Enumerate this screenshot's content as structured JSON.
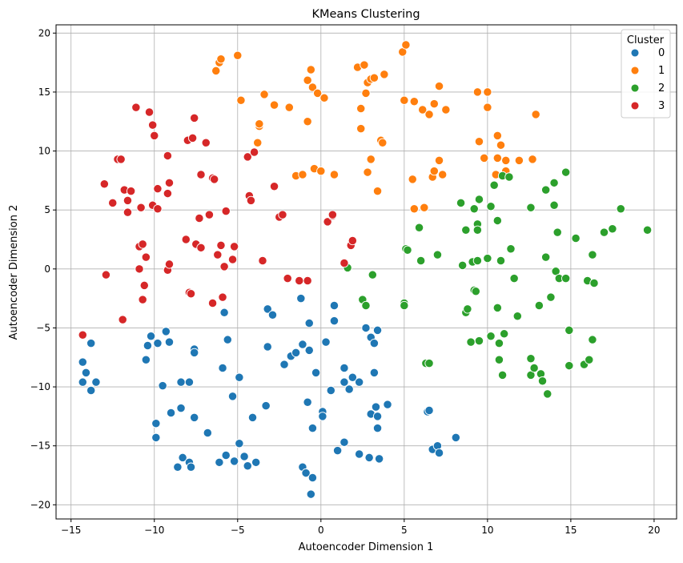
{
  "chart_data": {
    "type": "scatter",
    "title": "KMeans Clustering",
    "xlabel": "Autoencoder Dimension 1",
    "ylabel": "Autoencoder Dimension 2",
    "xlim": [
      -15.9,
      21.35
    ],
    "ylim": [
      -21.2,
      20.7
    ],
    "xticks": [
      -15,
      -10,
      -5,
      0,
      5,
      10,
      15,
      20
    ],
    "yticks": [
      -20,
      -15,
      -10,
      -5,
      0,
      5,
      10,
      15,
      20
    ],
    "xtick_labels": [
      "−15",
      "−10",
      "−5",
      "0",
      "5",
      "10",
      "15",
      "20"
    ],
    "ytick_labels": [
      "−20",
      "−15",
      "−10",
      "−5",
      "0",
      "5",
      "10",
      "15",
      "20"
    ],
    "grid": true,
    "legend": {
      "title": "Cluster",
      "placement": "top-right"
    },
    "series": [
      {
        "name": "0",
        "color": "#1f77b4",
        "points": [
          [
            -14.3,
            -7.9
          ],
          [
            -14.1,
            -8.8
          ],
          [
            -14.3,
            -9.6
          ],
          [
            -13.8,
            -6.3
          ],
          [
            -13.8,
            -10.3
          ],
          [
            -13.5,
            -9.6
          ],
          [
            -10.2,
            -5.7
          ],
          [
            -10.4,
            -6.5
          ],
          [
            -10.5,
            -7.7
          ],
          [
            -9.8,
            -6.3
          ],
          [
            -9.3,
            -5.3
          ],
          [
            -9.1,
            -6.2
          ],
          [
            -9.5,
            -9.9
          ],
          [
            -9.9,
            -13.1
          ],
          [
            -9.9,
            -14.3
          ],
          [
            -9.0,
            -12.2
          ],
          [
            -8.4,
            -11.8
          ],
          [
            -8.4,
            -9.6
          ],
          [
            -7.9,
            -9.6
          ],
          [
            -7.6,
            -6.8
          ],
          [
            -7.6,
            -7.1
          ],
          [
            -7.6,
            -12.6
          ],
          [
            -8.6,
            -16.8
          ],
          [
            -8.3,
            -16.0
          ],
          [
            -7.9,
            -16.4
          ],
          [
            -7.8,
            -16.8
          ],
          [
            -6.8,
            -13.9
          ],
          [
            -6.1,
            -16.4
          ],
          [
            -5.7,
            -15.8
          ],
          [
            -5.2,
            -16.3
          ],
          [
            -5.9,
            -8.4
          ],
          [
            -5.8,
            -3.7
          ],
          [
            -5.6,
            -6.0
          ],
          [
            -5.3,
            -10.8
          ],
          [
            -4.9,
            -9.2
          ],
          [
            -4.9,
            -14.8
          ],
          [
            -4.6,
            -15.9
          ],
          [
            -4.4,
            -16.7
          ],
          [
            -4.1,
            -12.6
          ],
          [
            -3.9,
            -16.4
          ],
          [
            -3.3,
            -11.6
          ],
          [
            -3.2,
            -6.6
          ],
          [
            -3.2,
            -3.4
          ],
          [
            -2.9,
            -3.9
          ],
          [
            -2.2,
            -8.1
          ],
          [
            -1.8,
            -7.4
          ],
          [
            -1.5,
            -7.1
          ],
          [
            -1.2,
            -2.5
          ],
          [
            -1.1,
            -6.4
          ],
          [
            -1.1,
            -16.8
          ],
          [
            -0.9,
            -17.3
          ],
          [
            -0.5,
            -17.7
          ],
          [
            -0.6,
            -19.1
          ],
          [
            -0.8,
            -11.3
          ],
          [
            -0.7,
            -6.9
          ],
          [
            -0.7,
            -4.6
          ],
          [
            -0.5,
            -13.5
          ],
          [
            -0.3,
            -8.8
          ],
          [
            0.1,
            -12.1
          ],
          [
            0.1,
            -12.5
          ],
          [
            0.3,
            -6.2
          ],
          [
            0.6,
            -10.3
          ],
          [
            0.8,
            -3.1
          ],
          [
            0.8,
            -4.4
          ],
          [
            1.0,
            -15.4
          ],
          [
            1.4,
            -8.4
          ],
          [
            1.4,
            -9.6
          ],
          [
            1.4,
            -14.7
          ],
          [
            1.7,
            -10.2
          ],
          [
            1.9,
            -9.2
          ],
          [
            2.3,
            -15.7
          ],
          [
            2.3,
            -9.6
          ],
          [
            2.7,
            -5.0
          ],
          [
            3.0,
            -5.8
          ],
          [
            3.0,
            -12.3
          ],
          [
            2.9,
            -16.0
          ],
          [
            3.2,
            -6.3
          ],
          [
            3.2,
            -8.8
          ],
          [
            3.3,
            -11.7
          ],
          [
            3.4,
            -13.5
          ],
          [
            3.4,
            -5.2
          ],
          [
            3.4,
            -12.5
          ],
          [
            3.5,
            -16.1
          ],
          [
            4.0,
            -11.5
          ],
          [
            6.4,
            -12.1
          ],
          [
            6.5,
            -12.0
          ],
          [
            6.7,
            -15.3
          ],
          [
            7.0,
            -15.0
          ],
          [
            7.1,
            -15.6
          ],
          [
            8.1,
            -14.3
          ]
        ]
      },
      {
        "name": "1",
        "color": "#ff7f0e",
        "points": [
          [
            -6.3,
            16.8
          ],
          [
            -6.1,
            17.5
          ],
          [
            -6.0,
            17.8
          ],
          [
            -5.0,
            18.1
          ],
          [
            -4.8,
            14.3
          ],
          [
            -3.8,
            10.7
          ],
          [
            -3.7,
            12.1
          ],
          [
            -3.7,
            12.3
          ],
          [
            -3.4,
            14.8
          ],
          [
            -2.8,
            13.9
          ],
          [
            -1.9,
            13.7
          ],
          [
            -1.5,
            7.9
          ],
          [
            -1.1,
            8.0
          ],
          [
            -0.8,
            12.5
          ],
          [
            -0.8,
            16.0
          ],
          [
            -0.6,
            16.9
          ],
          [
            -0.5,
            15.4
          ],
          [
            -0.4,
            8.5
          ],
          [
            -0.2,
            14.9
          ],
          [
            0.0,
            8.3
          ],
          [
            0.2,
            14.5
          ],
          [
            0.8,
            8.0
          ],
          [
            2.2,
            17.1
          ],
          [
            2.4,
            11.9
          ],
          [
            2.4,
            13.6
          ],
          [
            2.6,
            17.3
          ],
          [
            2.7,
            14.9
          ],
          [
            2.8,
            15.8
          ],
          [
            2.8,
            8.2
          ],
          [
            3.0,
            16.1
          ],
          [
            3.2,
            16.2
          ],
          [
            3.0,
            9.3
          ],
          [
            3.4,
            6.6
          ],
          [
            3.6,
            10.9
          ],
          [
            3.7,
            10.7
          ],
          [
            3.8,
            16.5
          ],
          [
            4.9,
            18.4
          ],
          [
            5.1,
            19.0
          ],
          [
            5.0,
            14.3
          ],
          [
            5.5,
            7.6
          ],
          [
            5.6,
            5.1
          ],
          [
            5.6,
            14.2
          ],
          [
            6.1,
            13.5
          ],
          [
            6.2,
            5.2
          ],
          [
            6.5,
            13.1
          ],
          [
            6.7,
            7.8
          ],
          [
            6.8,
            8.3
          ],
          [
            6.8,
            14.0
          ],
          [
            7.1,
            9.2
          ],
          [
            7.1,
            15.5
          ],
          [
            7.3,
            8.0
          ],
          [
            7.5,
            13.5
          ],
          [
            9.4,
            15.0
          ],
          [
            9.5,
            10.8
          ],
          [
            9.8,
            9.4
          ],
          [
            10.0,
            15.0
          ],
          [
            10.0,
            13.7
          ],
          [
            10.5,
            8.0
          ],
          [
            10.6,
            11.3
          ],
          [
            10.6,
            9.4
          ],
          [
            10.8,
            10.5
          ],
          [
            11.1,
            9.2
          ],
          [
            11.1,
            8.3
          ],
          [
            11.9,
            9.2
          ],
          [
            12.7,
            9.3
          ],
          [
            12.9,
            13.1
          ]
        ]
      },
      {
        "name": "2",
        "color": "#2ca02c",
        "points": [
          [
            1.6,
            0.1
          ],
          [
            3.1,
            -0.5
          ],
          [
            2.5,
            -2.6
          ],
          [
            2.7,
            -3.1
          ],
          [
            5.0,
            -2.9
          ],
          [
            5.0,
            -3.1
          ],
          [
            5.1,
            1.7
          ],
          [
            5.2,
            1.6
          ],
          [
            5.9,
            3.5
          ],
          [
            6.0,
            0.7
          ],
          [
            6.3,
            -8.0
          ],
          [
            6.5,
            -8.0
          ],
          [
            7.0,
            1.2
          ],
          [
            8.4,
            5.6
          ],
          [
            8.5,
            0.3
          ],
          [
            8.7,
            3.3
          ],
          [
            8.7,
            -3.7
          ],
          [
            8.8,
            -3.4
          ],
          [
            9.0,
            -6.2
          ],
          [
            9.1,
            0.6
          ],
          [
            9.2,
            5.1
          ],
          [
            9.2,
            -1.8
          ],
          [
            9.3,
            -1.9
          ],
          [
            9.4,
            0.7
          ],
          [
            9.4,
            3.8
          ],
          [
            9.4,
            3.3
          ],
          [
            9.5,
            5.9
          ],
          [
            9.5,
            -6.1
          ],
          [
            10.0,
            0.9
          ],
          [
            10.2,
            5.3
          ],
          [
            10.2,
            -5.7
          ],
          [
            10.4,
            7.1
          ],
          [
            10.6,
            4.1
          ],
          [
            10.6,
            -3.3
          ],
          [
            10.7,
            -6.3
          ],
          [
            10.7,
            -7.7
          ],
          [
            10.8,
            0.7
          ],
          [
            10.9,
            7.9
          ],
          [
            10.9,
            -9.0
          ],
          [
            11.0,
            -5.5
          ],
          [
            11.3,
            7.8
          ],
          [
            11.4,
            1.7
          ],
          [
            11.6,
            -0.8
          ],
          [
            11.8,
            -4.0
          ],
          [
            12.6,
            5.2
          ],
          [
            12.6,
            -7.6
          ],
          [
            12.6,
            -9.0
          ],
          [
            12.8,
            -8.4
          ],
          [
            13.1,
            -3.1
          ],
          [
            13.2,
            -8.9
          ],
          [
            13.3,
            -9.5
          ],
          [
            13.5,
            1.0
          ],
          [
            13.5,
            6.7
          ],
          [
            13.6,
            -10.6
          ],
          [
            13.8,
            -2.4
          ],
          [
            14.0,
            7.3
          ],
          [
            14.0,
            5.4
          ],
          [
            14.1,
            -0.2
          ],
          [
            14.2,
            3.1
          ],
          [
            14.3,
            -0.8
          ],
          [
            14.7,
            8.2
          ],
          [
            14.7,
            -0.8
          ],
          [
            14.9,
            -5.2
          ],
          [
            14.9,
            -8.2
          ],
          [
            15.3,
            2.6
          ],
          [
            15.8,
            -8.1
          ],
          [
            16.0,
            -1.0
          ],
          [
            16.1,
            -7.7
          ],
          [
            16.3,
            -6.0
          ],
          [
            16.3,
            1.2
          ],
          [
            16.4,
            -1.2
          ],
          [
            17.0,
            3.1
          ],
          [
            17.5,
            3.4
          ],
          [
            18.0,
            5.1
          ],
          [
            19.6,
            3.3
          ]
        ]
      },
      {
        "name": "3",
        "color": "#d62728",
        "points": [
          [
            -14.3,
            -5.6
          ],
          [
            -13.0,
            7.2
          ],
          [
            -12.9,
            -0.5
          ],
          [
            -12.5,
            5.6
          ],
          [
            -12.2,
            9.3
          ],
          [
            -12.0,
            9.3
          ],
          [
            -11.9,
            -4.3
          ],
          [
            -11.8,
            6.7
          ],
          [
            -11.6,
            5.8
          ],
          [
            -11.6,
            4.8
          ],
          [
            -11.4,
            6.6
          ],
          [
            -11.1,
            13.7
          ],
          [
            -10.9,
            1.9
          ],
          [
            -10.9,
            0.0
          ],
          [
            -10.8,
            5.2
          ],
          [
            -10.7,
            -2.6
          ],
          [
            -10.7,
            2.1
          ],
          [
            -10.6,
            -1.4
          ],
          [
            -10.5,
            1.0
          ],
          [
            -10.3,
            13.3
          ],
          [
            -10.1,
            12.2
          ],
          [
            -10.0,
            11.3
          ],
          [
            -10.1,
            5.4
          ],
          [
            -9.8,
            5.1
          ],
          [
            -9.8,
            6.8
          ],
          [
            -9.2,
            -0.1
          ],
          [
            -9.2,
            9.6
          ],
          [
            -9.2,
            6.4
          ],
          [
            -9.1,
            7.3
          ],
          [
            -9.1,
            0.4
          ],
          [
            -8.1,
            2.5
          ],
          [
            -8.0,
            10.9
          ],
          [
            -7.9,
            -2.0
          ],
          [
            -7.8,
            -2.1
          ],
          [
            -7.7,
            11.1
          ],
          [
            -7.6,
            12.8
          ],
          [
            -7.5,
            2.1
          ],
          [
            -7.3,
            4.3
          ],
          [
            -7.2,
            1.8
          ],
          [
            -7.2,
            8.0
          ],
          [
            -6.9,
            10.7
          ],
          [
            -6.7,
            4.6
          ],
          [
            -6.5,
            -2.9
          ],
          [
            -6.5,
            7.7
          ],
          [
            -6.4,
            7.6
          ],
          [
            -6.2,
            1.2
          ],
          [
            -6.0,
            2.0
          ],
          [
            -5.9,
            -2.4
          ],
          [
            -5.8,
            0.2
          ],
          [
            -5.7,
            4.9
          ],
          [
            -5.3,
            0.8
          ],
          [
            -5.2,
            1.9
          ],
          [
            -4.4,
            9.5
          ],
          [
            -4.3,
            6.2
          ],
          [
            -4.2,
            5.8
          ],
          [
            -4.0,
            9.9
          ],
          [
            -3.5,
            0.7
          ],
          [
            -2.8,
            7.0
          ],
          [
            -2.5,
            4.4
          ],
          [
            -2.3,
            4.6
          ],
          [
            -2.0,
            -0.8
          ],
          [
            -1.3,
            -1.0
          ],
          [
            -0.8,
            -1.0
          ],
          [
            0.4,
            4.0
          ],
          [
            0.7,
            4.5
          ],
          [
            0.7,
            4.6
          ],
          [
            1.4,
            0.5
          ],
          [
            1.8,
            2.0
          ],
          [
            1.9,
            2.4
          ]
        ]
      }
    ]
  }
}
